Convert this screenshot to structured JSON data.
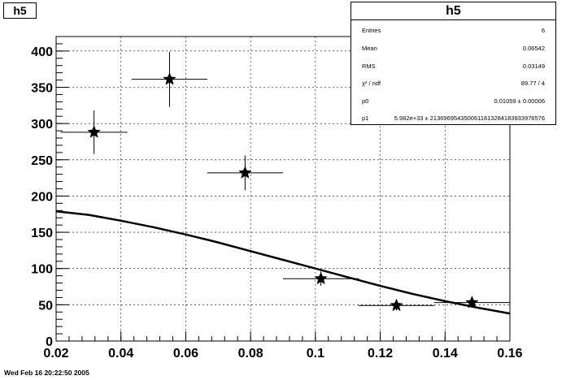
{
  "histogram_title": "h5",
  "stats": {
    "title": "h5",
    "rows": [
      {
        "key": "Entries",
        "value": "6"
      },
      {
        "key": "Mean",
        "value": "0.06542"
      },
      {
        "key": "RMS",
        "value": "0.03149"
      },
      {
        "key": "χ² / ndf",
        "value": "89.77 / 4"
      },
      {
        "key": "p0",
        "value": "0.01059 ± 0.00006"
      },
      {
        "key": "p1",
        "value": "5.982e+33 ± 2136969543500611813284183933976576"
      }
    ]
  },
  "footer_timestamp": "Wed Feb 16 20:22:50 2005",
  "chart_data": {
    "type": "scatter",
    "title": "h5",
    "xlabel": "",
    "ylabel": "",
    "xlim": [
      0.02,
      0.16
    ],
    "ylim": [
      0,
      420
    ],
    "grid": true,
    "x_ticks": [
      0.02,
      0.04,
      0.06,
      0.08,
      0.1,
      0.12,
      0.14,
      0.16
    ],
    "x_tick_labels": [
      "0.02",
      "0.04",
      "0.06",
      "0.08",
      "0.1",
      "0.12",
      "0.14",
      "0.16"
    ],
    "y_ticks": [
      0,
      50,
      100,
      150,
      200,
      250,
      300,
      350,
      400
    ],
    "y_tick_labels": [
      "0",
      "50",
      "100",
      "150",
      "200",
      "250",
      "300",
      "350",
      "400"
    ],
    "points": [
      {
        "x": 0.0317,
        "y": 288,
        "xerr": 0.0103,
        "yerr": 30
      },
      {
        "x": 0.055,
        "y": 361,
        "xerr": 0.0117,
        "yerr": 38
      },
      {
        "x": 0.0783,
        "y": 232,
        "xerr": 0.0117,
        "yerr": 24
      },
      {
        "x": 0.1017,
        "y": 86,
        "xerr": 0.0117,
        "yerr": 10
      },
      {
        "x": 0.125,
        "y": 49,
        "xerr": 0.0117,
        "yerr": 7
      },
      {
        "x": 0.1483,
        "y": 53,
        "xerr": 0.0117,
        "yerr": 7
      }
    ],
    "fit_curve": {
      "x": [
        0.02,
        0.03,
        0.04,
        0.05,
        0.06,
        0.07,
        0.08,
        0.09,
        0.1,
        0.11,
        0.12,
        0.13,
        0.14,
        0.15,
        0.16
      ],
      "y": [
        179,
        174,
        166,
        157,
        147,
        136,
        124,
        112,
        100,
        88,
        76,
        65,
        55,
        46,
        38
      ]
    }
  }
}
